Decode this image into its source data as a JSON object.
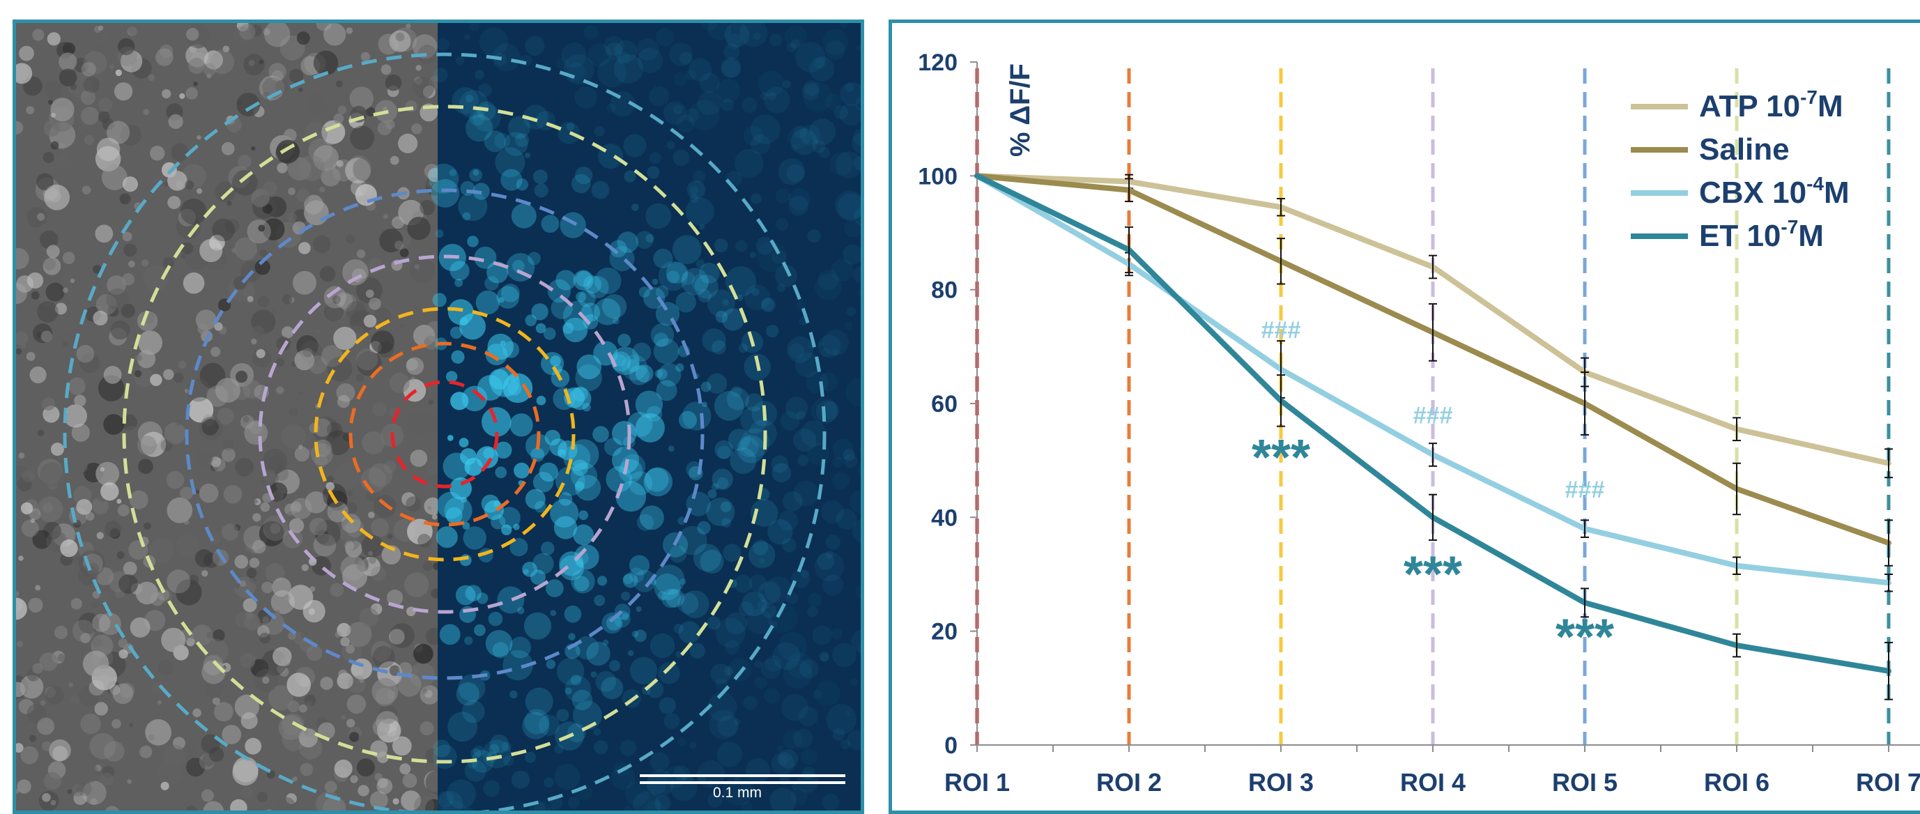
{
  "image": {
    "scale_bar_label": "0.1 mm",
    "colors": {
      "grayscale_half": "#5f5f5f",
      "fluorescence_half": "#0a2f52",
      "fluorescence_spot": "#3cc8ee"
    },
    "roi_ring_colors": [
      "#e8232a",
      "#ec6c22",
      "#f2b51c",
      "#b9a5d1",
      "#5d89c9",
      "#d3df97",
      "#58aac7"
    ]
  },
  "chart_data": {
    "type": "line",
    "categories": [
      "ROI 1",
      "ROI 2",
      "ROI 3",
      "ROI 4",
      "ROI 5",
      "ROI 6",
      "ROI 7"
    ],
    "ylabel": "% ΔF/F",
    "ylim": [
      0,
      120
    ],
    "yticks": [
      "0",
      "20",
      "40",
      "60",
      "80",
      "100",
      "120"
    ],
    "grid": false,
    "legend_position": "top-right",
    "roi_line_colors": [
      "#d93a3a",
      "#e97c3a",
      "#f7c940",
      "#c9bde0",
      "#7ba7d9",
      "#d6e2a6",
      "#3d8fa0"
    ],
    "series": [
      {
        "name": "ATP 10-7M",
        "legend_base": "ATP 10",
        "legend_exp": "-7",
        "legend_unit": "M",
        "color": "#cdc197",
        "values": [
          100,
          99,
          94.5,
          84,
          65.5,
          55.5,
          49.5
        ],
        "errors": [
          0,
          1.2,
          1.5,
          2,
          2.5,
          2,
          2.5
        ]
      },
      {
        "name": "Saline",
        "legend_base": "Saline",
        "legend_exp": "",
        "legend_unit": "",
        "color": "#9b8b4e",
        "values": [
          100,
          97.5,
          85,
          72.5,
          60,
          45,
          35.5
        ],
        "errors": [
          0,
          2,
          4,
          5,
          5.5,
          4.5,
          4
        ]
      },
      {
        "name": "CBX 10-4M",
        "legend_base": "CBX 10",
        "legend_exp": "-4",
        "legend_unit": "M",
        "color": "#93cfe1",
        "values": [
          100,
          84.5,
          66,
          51,
          38,
          31.5,
          28.5
        ],
        "errors": [
          0,
          2,
          5,
          2,
          1.5,
          1.5,
          1.5
        ]
      },
      {
        "name": "ET 10-7M",
        "legend_base": "ET 10",
        "legend_exp": "-7",
        "legend_unit": "M",
        "color": "#2f8699",
        "values": [
          100,
          87,
          60.5,
          40,
          25,
          17.5,
          13
        ],
        "errors": [
          0,
          4,
          4.5,
          4,
          2.5,
          2,
          5
        ]
      }
    ],
    "annotations": [
      {
        "text": "###",
        "x": "ROI 3",
        "y": 71.5,
        "color": "#93cfe1"
      },
      {
        "text": "###",
        "x": "ROI 4",
        "y": 56.5,
        "color": "#93cfe1"
      },
      {
        "text": "###",
        "x": "ROI 5",
        "y": 43.5,
        "color": "#93cfe1"
      },
      {
        "text": "***",
        "x": "ROI 3",
        "y": 47.5,
        "color": "#2f8699"
      },
      {
        "text": "***",
        "x": "ROI 4",
        "y": 27,
        "color": "#2f8699"
      },
      {
        "text": "***",
        "x": "ROI 5",
        "y": 16,
        "color": "#2f8699"
      }
    ]
  }
}
